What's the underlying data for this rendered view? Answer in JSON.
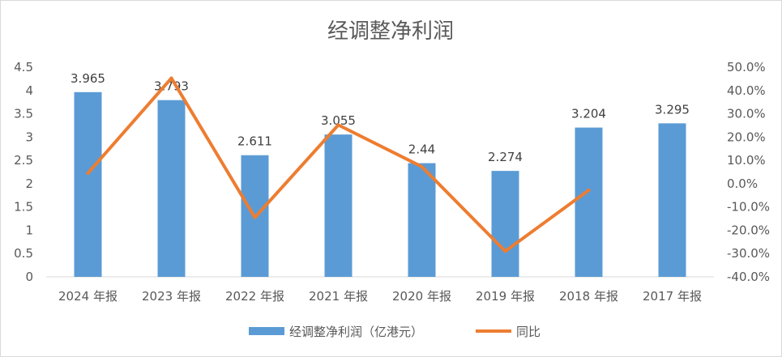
{
  "chart_data": {
    "type": "bar",
    "title": "经调整净利润",
    "categories": [
      "2024 年报",
      "2023 年报",
      "2022 年报",
      "2021 年报",
      "2020 年报",
      "2019 年报",
      "2018 年报",
      "2017 年报"
    ],
    "series": [
      {
        "name": "经调整净利润（亿港元）",
        "type": "bar",
        "axis": "left",
        "color": "#5b9bd5",
        "values": [
          3.965,
          3.793,
          2.611,
          3.055,
          2.44,
          2.274,
          3.204,
          3.295
        ],
        "labels": [
          "3.965",
          "3.793",
          "2.611",
          "3.055",
          "2.44",
          "2.274",
          "3.204",
          "3.295"
        ]
      },
      {
        "name": "同比",
        "type": "line",
        "axis": "right",
        "color": "#ed7d31",
        "values": [
          4.5,
          45.3,
          -14.5,
          25.2,
          7.3,
          -29.0,
          -2.8,
          null
        ]
      }
    ],
    "y_left": {
      "min": 0,
      "max": 4.5,
      "step": 0.5,
      "ticks": [
        "0",
        "0.5",
        "1",
        "1.5",
        "2",
        "2.5",
        "3",
        "3.5",
        "4",
        "4.5"
      ]
    },
    "y_right": {
      "min": -40,
      "max": 50,
      "step": 10,
      "ticks": [
        "-40.0%",
        "-30.0%",
        "-20.0%",
        "-10.0%",
        "0.0%",
        "10.0%",
        "20.0%",
        "30.0%",
        "40.0%",
        "50.0%"
      ]
    },
    "grid": false,
    "legend_position": "bottom"
  }
}
